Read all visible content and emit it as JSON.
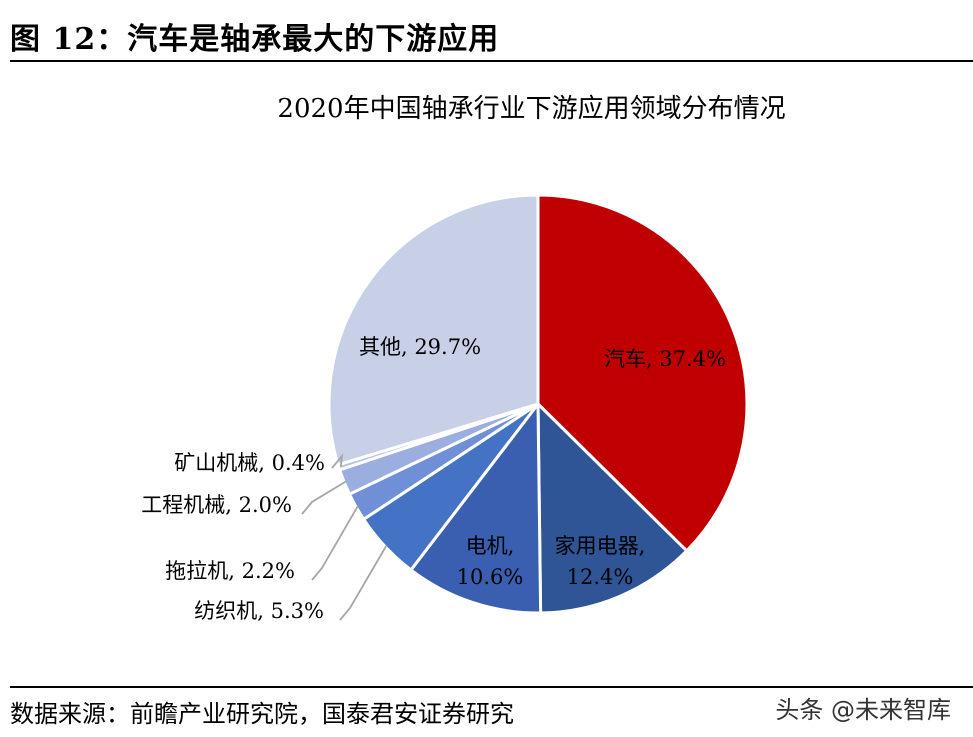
{
  "figure": {
    "title": "图 12：汽车是轴承最大的下游应用",
    "source": "数据来源：前瞻产业研究院，国泰君安证券研究",
    "watermark": "头条 @未来智库"
  },
  "chart_data": {
    "type": "pie",
    "title": "2020年中国轴承行业下游应用领域分布情况",
    "start": "12 o'clock, clockwise",
    "slices": [
      {
        "name": "汽车",
        "value": 37.4,
        "value_label": "37.4%",
        "color": "#c00000"
      },
      {
        "name": "家用电器",
        "value": 12.4,
        "value_label": "12.4%",
        "color": "#2f5597"
      },
      {
        "name": "电机",
        "value": 10.6,
        "value_label": "10.6%",
        "color": "#3a5fb0"
      },
      {
        "name": "纺织机",
        "value": 5.3,
        "value_label": "5.3%",
        "color": "#4472c4"
      },
      {
        "name": "拖拉机",
        "value": 2.2,
        "value_label": "2.2%",
        "color": "#6f8fd6"
      },
      {
        "name": "工程机械",
        "value": 2.0,
        "value_label": "2.0%",
        "color": "#9aafe0"
      },
      {
        "name": "矿山机械",
        "value": 0.4,
        "value_label": "0.4%",
        "color": "#b4c2e6"
      },
      {
        "name": "其他",
        "value": 29.7,
        "value_label": "29.7%",
        "color": "#c8d0e7"
      }
    ]
  }
}
